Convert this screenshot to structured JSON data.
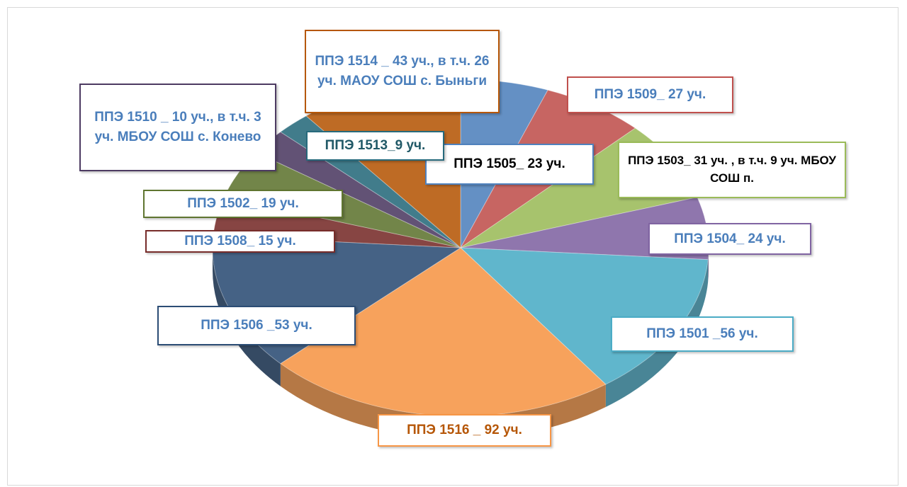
{
  "chart_data": {
    "type": "pie3d",
    "categories": [
      "ППЭ 1505_ 23 уч.",
      "ППЭ 1509_ 27 уч.",
      "ППЭ 1503_ 31 уч. , в т.ч. 9 уч. МБОУ СОШ п.",
      "ППЭ 1504_ 24 уч.",
      "ППЭ 1501 _56 уч.",
      "ППЭ 1516 _ 92 уч.",
      "ППЭ 1506 _53 уч.",
      "ППЭ 1508_ 15 уч.",
      "ППЭ 1502_ 19 уч.",
      "ППЭ 1510 _ 10 уч., в т.ч. 3 уч. МБОУ СОШ с. Конево",
      "ППЭ 1513_9 уч.",
      "ППЭ 1514 _ 43 уч., в т.ч. 26 уч. МАОУ СОШ с. Быньги"
    ],
    "values": [
      23,
      27,
      31,
      24,
      56,
      92,
      53,
      15,
      19,
      10,
      9,
      43
    ],
    "colors": [
      "#4f81bd",
      "#c0504d",
      "#9bbb59",
      "#8064a2",
      "#4bacc6",
      "#f79646",
      "#2c4d75",
      "#772c2a",
      "#5f7530",
      "#4d3b62",
      "#276a7c",
      "#b65708"
    ],
    "label_text_colors": [
      "#000000",
      "#4a7ebb",
      "#000000",
      "#4a7ebb",
      "#4a7ebb",
      "#b65708",
      "#4a7ebb",
      "#4a7ebb",
      "#4a7ebb",
      "#4a7ebb",
      "#215967",
      "#4a7ebb"
    ]
  }
}
